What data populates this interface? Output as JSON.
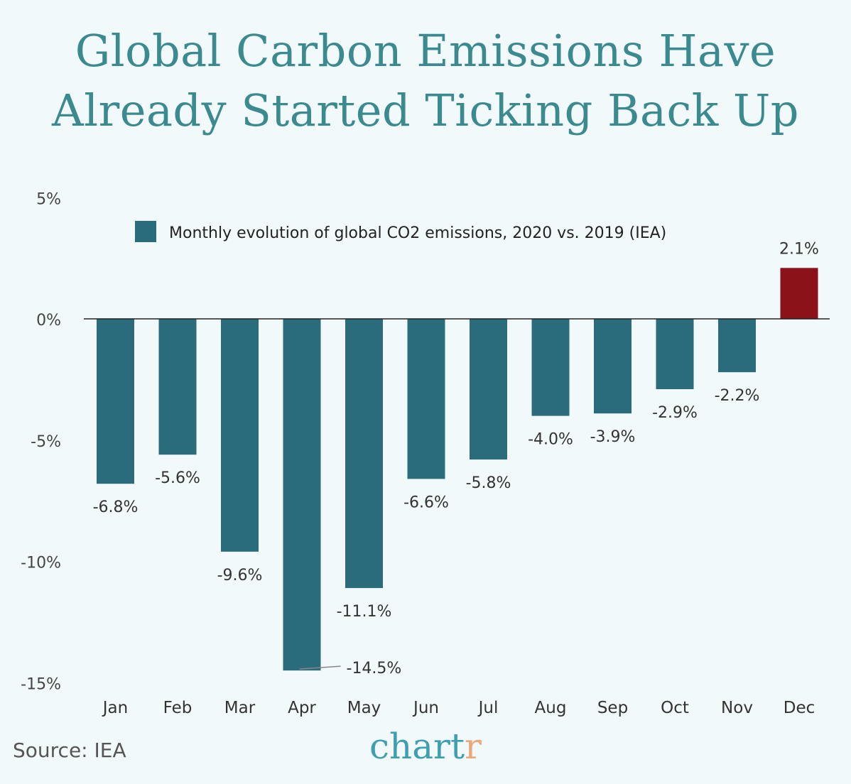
{
  "title_line1": "Global Carbon Emissions Have",
  "title_line2": "Already Started Ticking Back Up",
  "source": "Source: IEA",
  "logo": {
    "main": "chart",
    "accent": "r"
  },
  "colors": {
    "bar": "#2a6b7c",
    "highlight": "#8b1219",
    "title": "#3a8a8f",
    "background": "#f1f9fb"
  },
  "chart_data": {
    "type": "bar",
    "categories": [
      "Jan",
      "Feb",
      "Mar",
      "Apr",
      "May",
      "Jun",
      "Jul",
      "Aug",
      "Sep",
      "Oct",
      "Nov",
      "Dec"
    ],
    "series": [
      {
        "name": "Monthly evolution of global CO2 emissions, 2020 vs. 2019 (IEA)",
        "values": [
          -6.8,
          -5.6,
          -9.6,
          -14.5,
          -11.1,
          -6.6,
          -5.8,
          -4.0,
          -3.9,
          -2.9,
          -2.2,
          2.1
        ]
      }
    ],
    "data_labels": [
      "-6.8%",
      "-5.6%",
      "-9.6%",
      "-14.5%",
      "-11.1%",
      "-6.6%",
      "-5.8%",
      "-4.0%",
      "-3.9%",
      "-2.9%",
      "-2.2%",
      "2.1%"
    ],
    "yticks": [
      5,
      0,
      -5,
      -10,
      -15
    ],
    "ytick_labels": [
      "5%",
      "0%",
      "-5%",
      "-10%",
      "-15%"
    ],
    "ylim": [
      -15,
      5
    ],
    "grid": false,
    "legend_placement": "top"
  }
}
